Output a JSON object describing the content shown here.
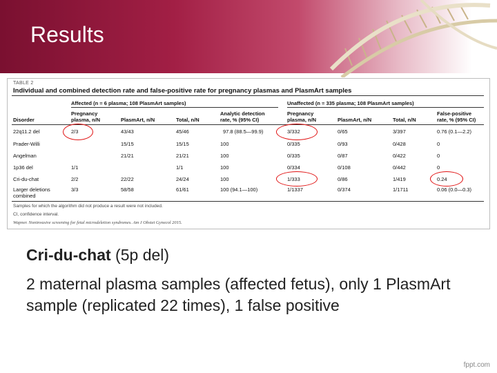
{
  "slide": {
    "title": "Results",
    "credit": "fppt.com"
  },
  "table": {
    "label": "TABLE 2",
    "title": "Individual and combined detection rate and false-positive rate for pregnancy plasmas and PlasmArt samples",
    "group_affected": "Affected (n = 6 plasma; 108 PlasmArt samples)",
    "group_unaffected": "Unaffected (n = 335 plasma; 108 PlasmArt samples)",
    "headers": {
      "disorder": "Disorder",
      "preg_a_1": "Pregnancy",
      "preg_a_2": "plasma, n/N",
      "plasmart_a": "PlasmArt, n/N",
      "total_a": "Total, n/N",
      "analytic_1": "Analytic detection",
      "analytic_2": "rate, % (95% CI)",
      "preg_u_1": "Pregnancy",
      "preg_u_2": "plasma, n/N",
      "plasmart_u": "PlasmArt, n/N",
      "total_u": "Total, n/N",
      "fp_1": "False-positive",
      "fp_2": "rate, % (95% CI)"
    },
    "rows": [
      {
        "disorder": "22q11.2 del",
        "preg_a": "2/3",
        "plasmart_a": "43/43",
        "total_a": "45/46",
        "analytic": "97.8 (88.5—99.9)",
        "preg_u": "3/332",
        "plasmart_u": "0/65",
        "total_u": "3/397",
        "fp": "0.76 (0.1—2.2)"
      },
      {
        "disorder": "Prader-Willi",
        "preg_a": "",
        "plasmart_a": "15/15",
        "total_a": "15/15",
        "analytic": "100",
        "preg_u": "0/335",
        "plasmart_u": "0/93",
        "total_u": "0/428",
        "fp": "0"
      },
      {
        "disorder": "Angelman",
        "preg_a": "",
        "plasmart_a": "21/21",
        "total_a": "21/21",
        "analytic": "100",
        "preg_u": "0/335",
        "plasmart_u": "0/87",
        "total_u": "0/422",
        "fp": "0"
      },
      {
        "disorder": "1p36 del",
        "preg_a": "1/1",
        "plasmart_a": "",
        "total_a": "1/1",
        "analytic": "100",
        "preg_u": "0/334",
        "plasmart_u": "0/108",
        "total_u": "0/442",
        "fp": "0"
      },
      {
        "disorder": "Cri-du-chat",
        "preg_a": "2/2",
        "plasmart_a": "22/22",
        "total_a": "24/24",
        "analytic": "100",
        "preg_u": "1/333",
        "plasmart_u": "0/86",
        "total_u": "1/419",
        "fp": "0.24"
      },
      {
        "disorder_1": "Larger deletions",
        "disorder_2": "combined",
        "preg_a": "3/3",
        "plasmart_a": "58/58",
        "total_a": "61/61",
        "analytic": "100 (94.1—100)",
        "preg_u": "1/1337",
        "plasmart_u": "0/374",
        "total_u": "1/1711",
        "fp": "0.06 (0.0—0.3)"
      }
    ],
    "footnotes": [
      "Samples for which the algorithm did not produce a result were not included.",
      "CI, confidence interval.",
      "Wapner. Noninvasive screening for fetal microdeletion syndromes. Am J Obstet Gynecol 2015."
    ]
  },
  "highlight_color": "#e01010",
  "note": {
    "title_bold": "Cri-du-chat",
    "title_rest": " (5p del)",
    "body": "2 maternal plasma samples (affected fetus), only 1 PlasmArt sample (replicated 22 times), 1 false positive"
  }
}
